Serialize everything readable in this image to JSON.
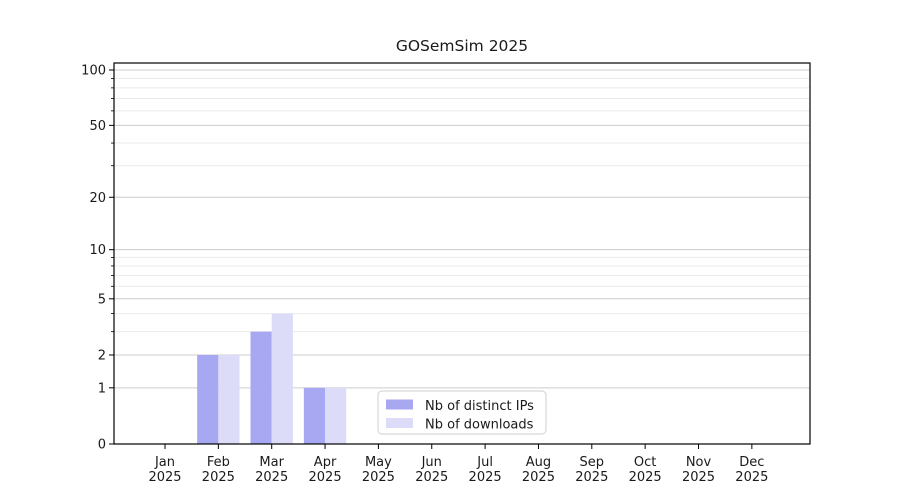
{
  "chart_data": {
    "type": "bar",
    "title": "GOSemSim 2025",
    "categories": [
      "Jan",
      "Feb",
      "Mar",
      "Apr",
      "May",
      "Jun",
      "Jul",
      "Aug",
      "Sep",
      "Oct",
      "Nov",
      "Dec"
    ],
    "category_year": "2025",
    "series": [
      {
        "name": "Nb of distinct IPs",
        "color": "#a8a8f2",
        "values": [
          0,
          2,
          3,
          1,
          0,
          0,
          0,
          0,
          0,
          0,
          0,
          0
        ]
      },
      {
        "name": "Nb of downloads",
        "color": "#dcdcf8",
        "values": [
          0,
          2,
          4,
          1,
          0,
          0,
          0,
          0,
          0,
          0,
          0,
          0
        ]
      }
    ],
    "y_axis": {
      "scale": "log10(1+value)",
      "major_ticks": [
        0,
        1,
        2,
        5,
        10,
        20,
        50,
        100
      ],
      "minor_gridline_values": [
        3,
        4,
        6,
        7,
        8,
        9,
        30,
        40,
        60,
        70,
        80,
        90
      ],
      "range": [
        0,
        109
      ]
    },
    "legend": {
      "position": "bottom-center-inside",
      "entries": [
        "Nb of distinct IPs",
        "Nb of downloads"
      ]
    },
    "grid": true,
    "colors": {
      "major_grid": "#cccccc",
      "minor_grid": "#ebebeb",
      "axis": "#000000",
      "legend_border": "#cfcfcf",
      "background": "#ffffff"
    }
  }
}
